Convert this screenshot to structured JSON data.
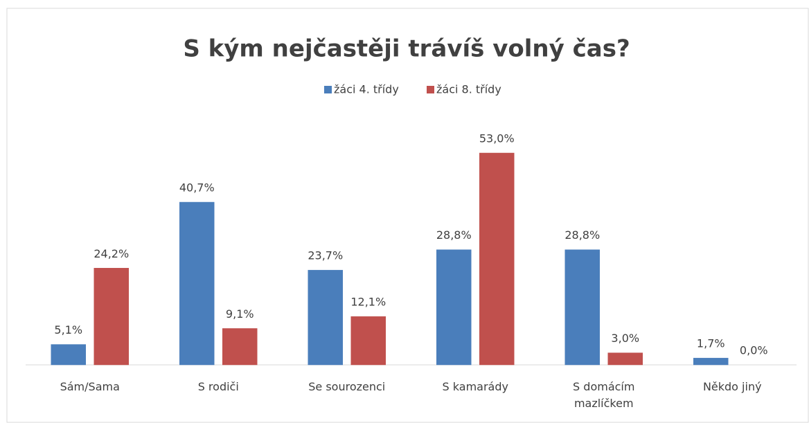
{
  "chart_data": {
    "type": "bar",
    "title": "S kým nejčastěji trávíš volný čas?",
    "categories": [
      "Sám/Sama",
      "S rodiči",
      "Se sourozenci",
      "S kamarády",
      "S domácím mazlíčkem",
      "Někdo jiný"
    ],
    "series": [
      {
        "name": "žáci 4. třídy",
        "color": "#4a7ebb",
        "values": [
          5.1,
          40.7,
          23.7,
          28.8,
          28.8,
          1.7
        ],
        "value_labels": [
          "5,1%",
          "40,7%",
          "23,7%",
          "28,8%",
          "28,8%",
          "1,7%"
        ]
      },
      {
        "name": "žáci 8. třídy",
        "color": "#c0504d",
        "values": [
          24.2,
          9.1,
          12.1,
          53.0,
          3.0,
          0.0
        ],
        "value_labels": [
          "24,2%",
          "9,1%",
          "12,1%",
          "53,0%",
          "3,0%",
          "0,0%"
        ]
      }
    ],
    "legend": "top"
  }
}
